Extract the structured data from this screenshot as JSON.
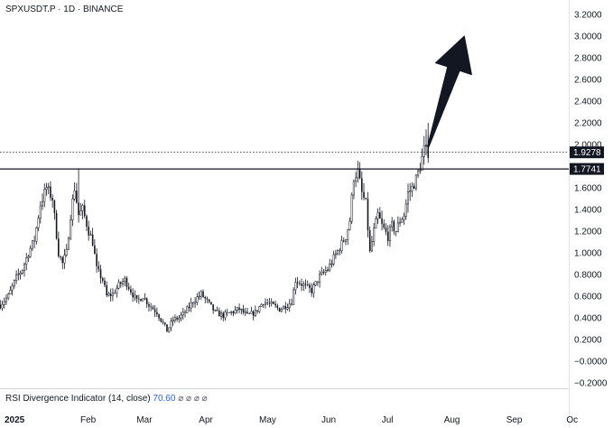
{
  "header": {
    "symbol_line": "SPXUSDT.P · 1D · BINANCE"
  },
  "indicator": {
    "label": "RSI Divergence Indicator (14, close)",
    "value": "70.60",
    "symbols": "⌀ ⌀ ⌀ ⌀"
  },
  "price_tags": {
    "current": "1.9278",
    "level": "1.7741"
  },
  "chart_data": {
    "type": "candlestick",
    "title": "SPXUSDT.P · 1D · BINANCE",
    "y_ticks": [
      "3.2000",
      "3.0000",
      "2.8000",
      "2.6000",
      "2.4000",
      "2.2000",
      "2.0000",
      "1.6000",
      "1.4000",
      "1.2000",
      "1.0000",
      "0.8000",
      "0.6000",
      "0.4000",
      "0.2000",
      "−0.0000",
      "−0.2000"
    ],
    "x_ticks": [
      "2025",
      "Feb",
      "Mar",
      "Apr",
      "May",
      "Jun",
      "Jul",
      "Aug",
      "Sep",
      "Oc"
    ],
    "ylim": [
      -0.2,
      3.2
    ],
    "horizontal_level": 1.7741,
    "current_price": 1.9278,
    "arrow": {
      "from": [
        "2025-07-21",
        1.98
      ],
      "to": [
        "2025-08-08",
        3.0
      ]
    },
    "series": [
      {
        "keypoints": [
          [
            "2024-12-20",
            0.52
          ],
          [
            "2024-12-24",
            0.6
          ],
          [
            "2024-12-28",
            0.77
          ],
          [
            "2024-12-31",
            0.85
          ],
          [
            "2025-01-03",
            1.0
          ],
          [
            "2025-01-06",
            1.12
          ],
          [
            "2025-01-09",
            1.45
          ],
          [
            "2025-01-12",
            1.6
          ],
          [
            "2025-01-15",
            1.5
          ],
          [
            "2025-01-18",
            1.0
          ],
          [
            "2025-01-20",
            0.9
          ],
          [
            "2025-01-22",
            1.0
          ],
          [
            "2025-01-24",
            1.35
          ],
          [
            "2025-01-26",
            1.6
          ],
          [
            "2025-01-28",
            1.35
          ],
          [
            "2025-01-30",
            1.4
          ],
          [
            "2025-02-02",
            1.2
          ],
          [
            "2025-02-04",
            1.1
          ],
          [
            "2025-02-06",
            0.85
          ],
          [
            "2025-02-09",
            0.75
          ],
          [
            "2025-02-11",
            0.6
          ],
          [
            "2025-02-14",
            0.62
          ],
          [
            "2025-02-17",
            0.7
          ],
          [
            "2025-02-20",
            0.75
          ],
          [
            "2025-02-23",
            0.65
          ],
          [
            "2025-02-26",
            0.55
          ],
          [
            "2025-03-01",
            0.6
          ],
          [
            "2025-03-04",
            0.52
          ],
          [
            "2025-03-08",
            0.45
          ],
          [
            "2025-03-11",
            0.35
          ],
          [
            "2025-03-13",
            0.28
          ],
          [
            "2025-03-16",
            0.38
          ],
          [
            "2025-03-19",
            0.4
          ],
          [
            "2025-03-22",
            0.45
          ],
          [
            "2025-03-26",
            0.55
          ],
          [
            "2025-03-30",
            0.62
          ],
          [
            "2025-04-02",
            0.55
          ],
          [
            "2025-04-06",
            0.45
          ],
          [
            "2025-04-10",
            0.42
          ],
          [
            "2025-04-14",
            0.45
          ],
          [
            "2025-04-18",
            0.48
          ],
          [
            "2025-04-22",
            0.42
          ],
          [
            "2025-04-26",
            0.45
          ],
          [
            "2025-04-30",
            0.55
          ],
          [
            "2025-05-04",
            0.52
          ],
          [
            "2025-05-08",
            0.48
          ],
          [
            "2025-05-12",
            0.52
          ],
          [
            "2025-05-14",
            0.55
          ],
          [
            "2025-05-16",
            0.75
          ],
          [
            "2025-05-20",
            0.7
          ],
          [
            "2025-05-24",
            0.65
          ],
          [
            "2025-05-28",
            0.78
          ],
          [
            "2025-06-01",
            0.85
          ],
          [
            "2025-06-04",
            0.95
          ],
          [
            "2025-06-07",
            1.05
          ],
          [
            "2025-06-10",
            1.15
          ],
          [
            "2025-06-12",
            1.3
          ],
          [
            "2025-06-14",
            1.7
          ],
          [
            "2025-06-16",
            1.75
          ],
          [
            "2025-06-18",
            1.55
          ],
          [
            "2025-06-20",
            1.45
          ],
          [
            "2025-06-22",
            1.0
          ],
          [
            "2025-06-24",
            1.2
          ],
          [
            "2025-06-26",
            1.35
          ],
          [
            "2025-06-28",
            1.25
          ],
          [
            "2025-07-01",
            1.15
          ],
          [
            "2025-07-03",
            1.25
          ],
          [
            "2025-07-05",
            1.2
          ],
          [
            "2025-07-07",
            1.3
          ],
          [
            "2025-07-09",
            1.35
          ],
          [
            "2025-07-11",
            1.55
          ],
          [
            "2025-07-13",
            1.6
          ],
          [
            "2025-07-15",
            1.68
          ],
          [
            "2025-07-17",
            1.8
          ],
          [
            "2025-07-19",
            1.95
          ],
          [
            "2025-07-21",
            1.93
          ]
        ]
      }
    ]
  },
  "colors": {
    "background": "#ffffff",
    "candle": "#131722",
    "level_line": "#131722",
    "arrow": "#131722",
    "rsi_value": "#2962ff",
    "tag_bg": "#131722",
    "tag_text": "#ffffff",
    "separator": "#d1d4dc"
  }
}
